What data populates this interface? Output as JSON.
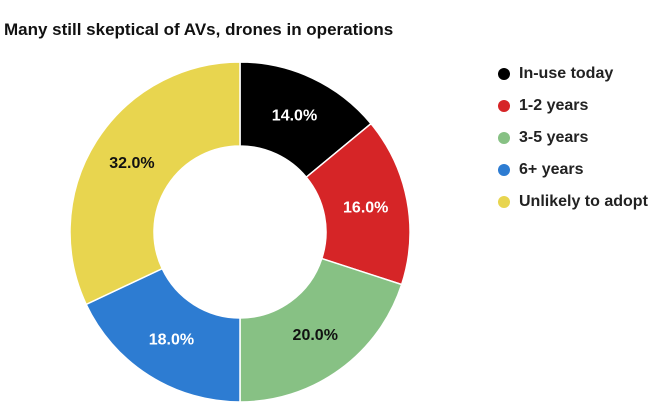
{
  "chart_data": {
    "type": "pie",
    "title": "Many still skeptical of AVs, drones in operations",
    "subtitle": "",
    "categories": [
      "In-use today",
      "1-2 years",
      "3-5 years",
      "6+ years",
      "Unlikely to adopt"
    ],
    "values": [
      14.0,
      16.0,
      20.0,
      18.0,
      32.0
    ],
    "value_labels": [
      "14.0%",
      "16.0%",
      "20.0%",
      "18.0%",
      "32.0%"
    ],
    "unit": "%",
    "colors": [
      "#000000",
      "#d62527",
      "#87c184",
      "#2d7cd2",
      "#e8d54f"
    ],
    "label_colors": [
      "#ffffff",
      "#ffffff",
      "#111111",
      "#ffffff",
      "#111111"
    ],
    "donut": true,
    "start_angle": "top",
    "direction": "clockwise",
    "legend_position": "right"
  }
}
